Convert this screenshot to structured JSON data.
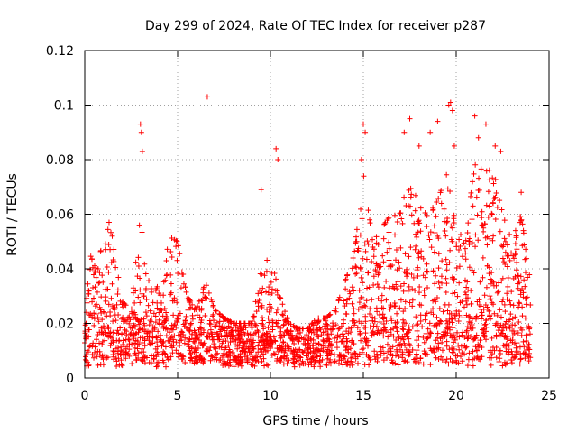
{
  "chart_data": {
    "type": "scatter",
    "title": "Day 299 of 2024, Rate Of TEC Index for receiver p287",
    "xlabel": "GPS time / hours",
    "ylabel": "ROTI / TECUs",
    "xlim": [
      0,
      25
    ],
    "ylim": [
      0,
      0.12
    ],
    "xticks": [
      0,
      5,
      10,
      15,
      20,
      25
    ],
    "yticks": [
      0,
      0.02,
      0.04,
      0.06,
      0.08,
      0.1,
      0.12
    ],
    "xtick_labels": [
      "0",
      "5",
      "10",
      "15",
      "20",
      "25"
    ],
    "ytick_labels": [
      "0",
      "0.02",
      "0.04",
      "0.06",
      "0.08",
      "0.1",
      "0.12"
    ],
    "grid": true,
    "marker": "+",
    "series": [
      {
        "color": "#ff0000",
        "envelope": [
          [
            0.0,
            0.022
          ],
          [
            0.3,
            0.045
          ],
          [
            0.6,
            0.04
          ],
          [
            1.0,
            0.05
          ],
          [
            1.3,
            0.06
          ],
          [
            1.6,
            0.048
          ],
          [
            2.0,
            0.028
          ],
          [
            2.5,
            0.025
          ],
          [
            3.0,
            0.06
          ],
          [
            3.3,
            0.04
          ],
          [
            3.7,
            0.03
          ],
          [
            4.0,
            0.035
          ],
          [
            4.5,
            0.052
          ],
          [
            5.0,
            0.05
          ],
          [
            5.5,
            0.03
          ],
          [
            6.0,
            0.025
          ],
          [
            6.5,
            0.035
          ],
          [
            7.0,
            0.025
          ],
          [
            7.5,
            0.022
          ],
          [
            8.0,
            0.02
          ],
          [
            8.5,
            0.02
          ],
          [
            9.0,
            0.02
          ],
          [
            9.5,
            0.04
          ],
          [
            10.0,
            0.045
          ],
          [
            10.5,
            0.03
          ],
          [
            11.0,
            0.02
          ],
          [
            11.5,
            0.018
          ],
          [
            12.0,
            0.018
          ],
          [
            12.5,
            0.022
          ],
          [
            13.0,
            0.022
          ],
          [
            13.5,
            0.025
          ],
          [
            14.0,
            0.035
          ],
          [
            14.5,
            0.045
          ],
          [
            15.0,
            0.075
          ],
          [
            15.5,
            0.05
          ],
          [
            16.0,
            0.055
          ],
          [
            16.5,
            0.06
          ],
          [
            17.0,
            0.065
          ],
          [
            17.5,
            0.07
          ],
          [
            18.0,
            0.065
          ],
          [
            18.5,
            0.06
          ],
          [
            19.0,
            0.065
          ],
          [
            19.5,
            0.075
          ],
          [
            20.0,
            0.055
          ],
          [
            20.5,
            0.05
          ],
          [
            21.0,
            0.08
          ],
          [
            21.5,
            0.075
          ],
          [
            22.0,
            0.078
          ],
          [
            22.5,
            0.06
          ],
          [
            23.0,
            0.05
          ],
          [
            23.5,
            0.06
          ],
          [
            24.0,
            0.035
          ]
        ],
        "outliers": [
          [
            3.0,
            0.093
          ],
          [
            3.05,
            0.09
          ],
          [
            3.1,
            0.083
          ],
          [
            6.6,
            0.103
          ],
          [
            9.5,
            0.069
          ],
          [
            10.3,
            0.084
          ],
          [
            10.4,
            0.08
          ],
          [
            15.0,
            0.093
          ],
          [
            15.1,
            0.09
          ],
          [
            14.9,
            0.08
          ],
          [
            17.5,
            0.095
          ],
          [
            17.2,
            0.09
          ],
          [
            18.0,
            0.085
          ],
          [
            18.6,
            0.09
          ],
          [
            19.0,
            0.094
          ],
          [
            19.6,
            0.1
          ],
          [
            19.7,
            0.101
          ],
          [
            19.8,
            0.098
          ],
          [
            19.9,
            0.085
          ],
          [
            21.0,
            0.096
          ],
          [
            21.2,
            0.088
          ],
          [
            21.6,
            0.093
          ],
          [
            22.1,
            0.085
          ],
          [
            22.4,
            0.083
          ],
          [
            23.5,
            0.068
          ]
        ]
      }
    ]
  }
}
